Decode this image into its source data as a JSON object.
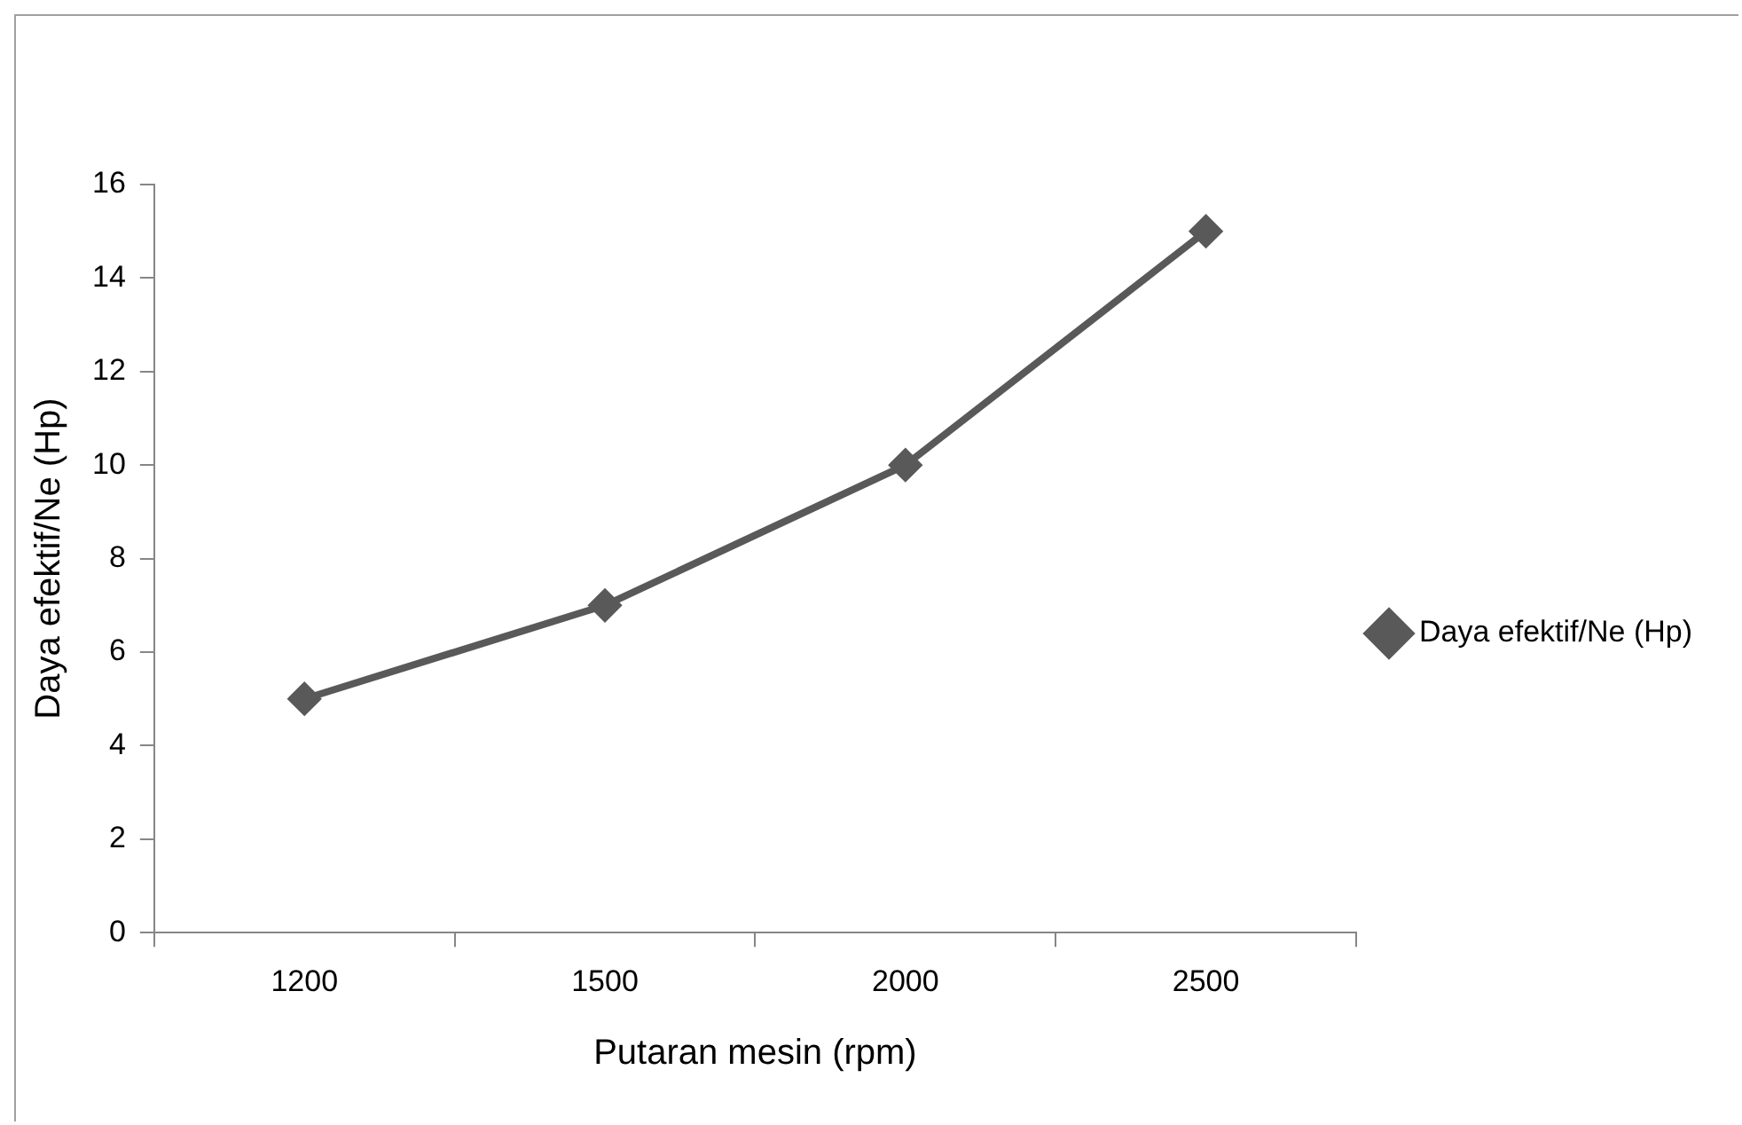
{
  "chart_data": {
    "type": "line",
    "xlabel": "Putaran mesin (rpm)",
    "ylabel": "Daya efektif/Ne (Hp)",
    "categories": [
      "1200",
      "1500",
      "2000",
      "2500"
    ],
    "series": [
      {
        "name": "Daya efektif/Ne (Hp)",
        "color": "#595959",
        "values": [
          5,
          7,
          10,
          15
        ]
      }
    ],
    "ylim": [
      0,
      16
    ],
    "yticks": [
      0,
      2,
      4,
      6,
      8,
      10,
      12,
      14,
      16
    ],
    "grid": false,
    "legend": "right",
    "marker": "diamond",
    "line_style": "solid"
  }
}
